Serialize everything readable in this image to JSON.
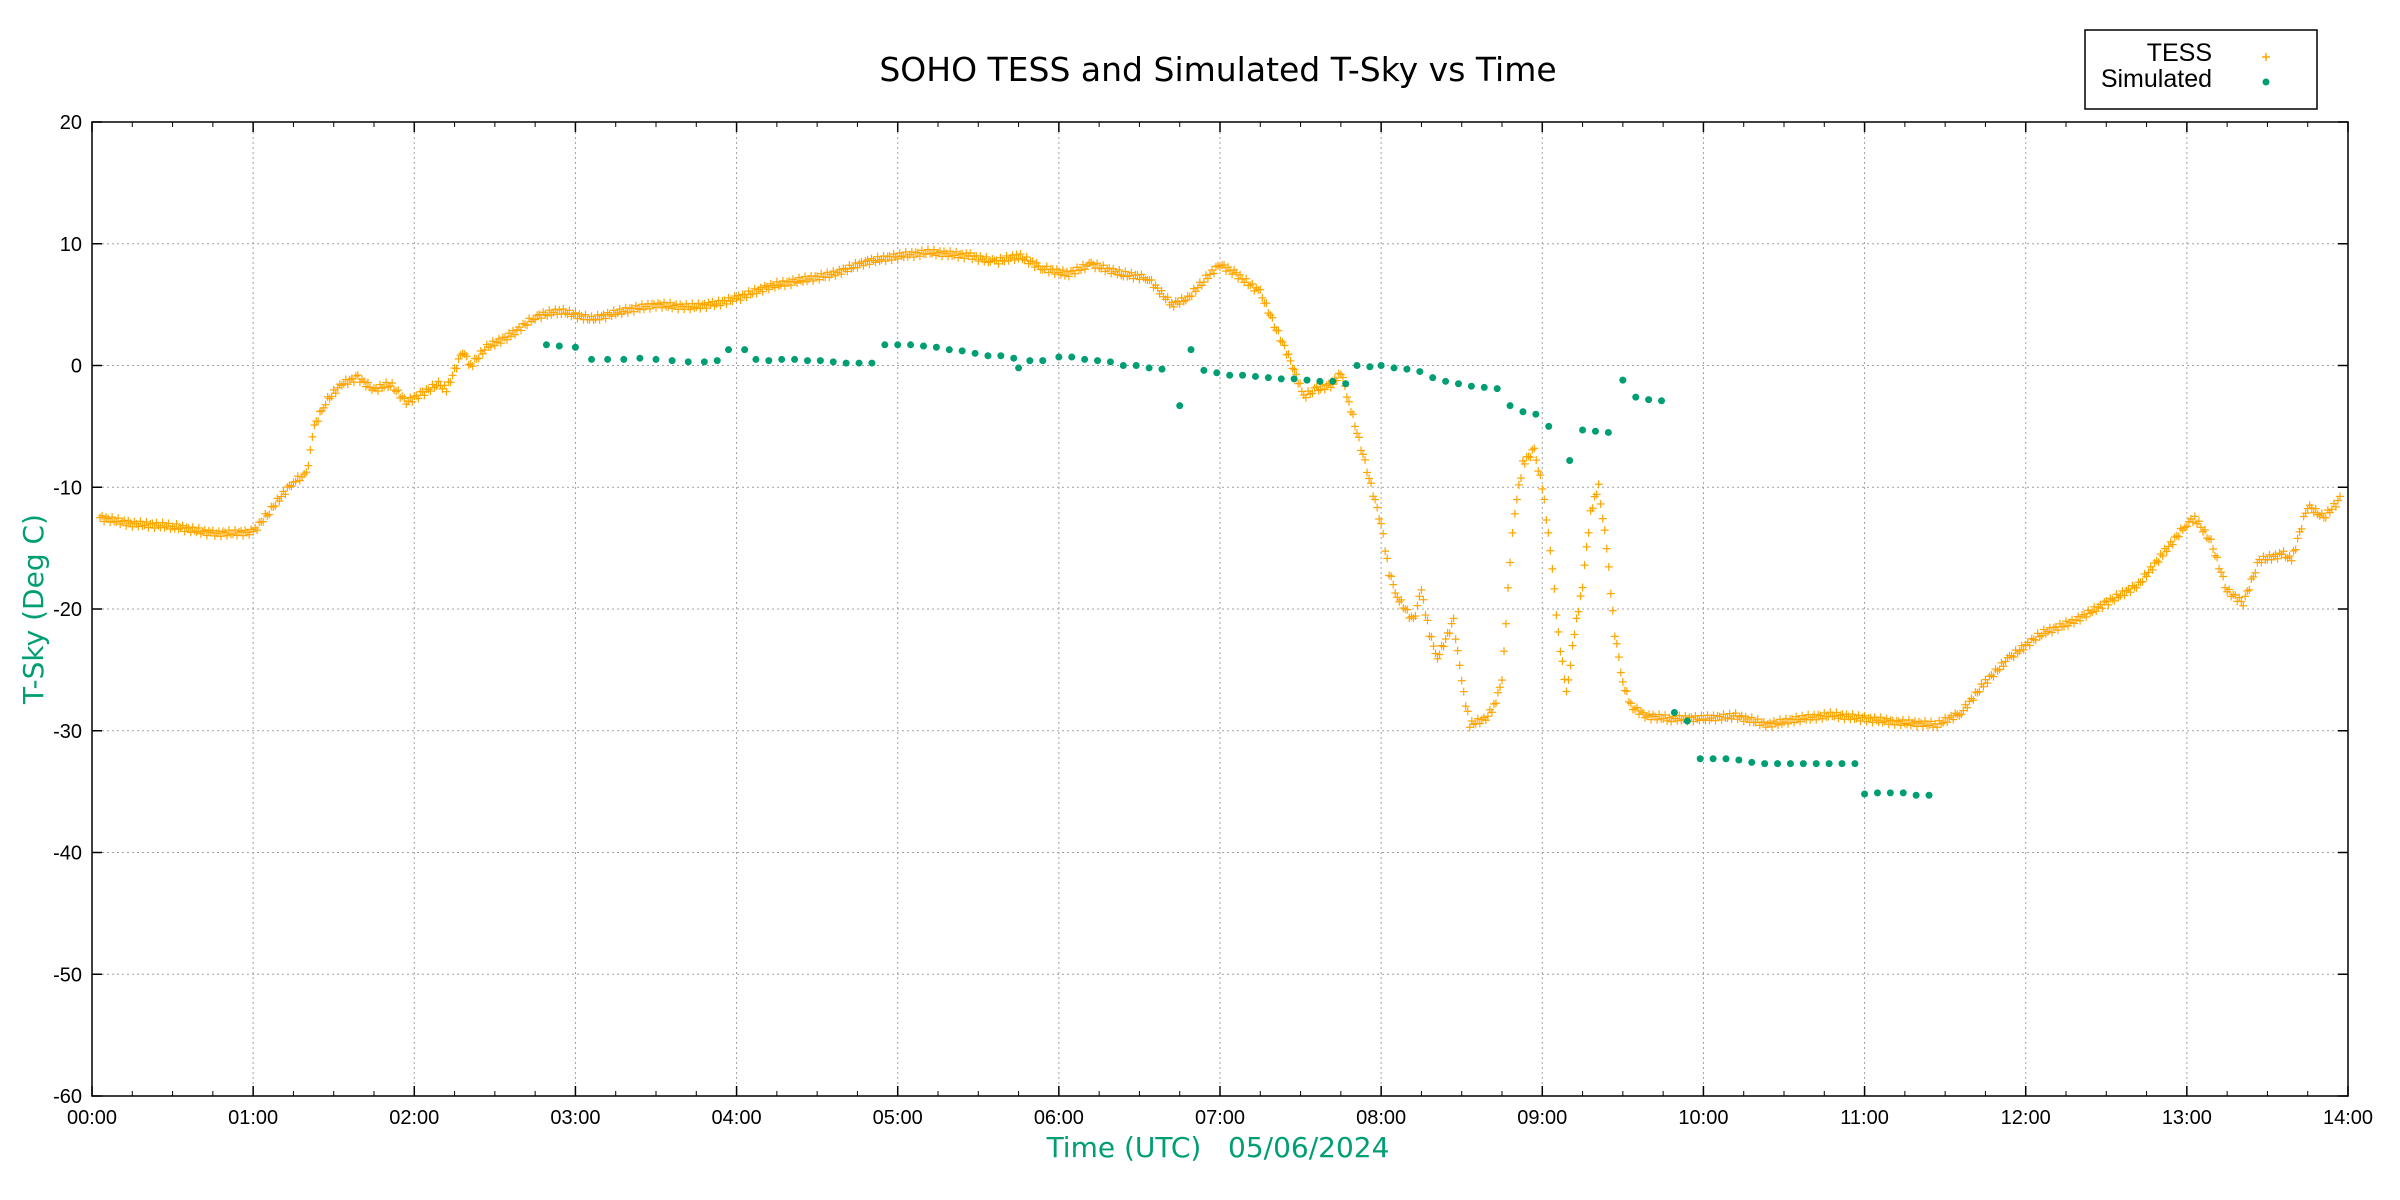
{
  "chart_data": {
    "type": "scatter",
    "title": "SOHO TESS and Simulated T-Sky vs Time",
    "xlabel": "Time (UTC)",
    "xlabel_date": "05/06/2024",
    "ylabel": "T-Sky (Deg C)",
    "xlim": [
      0,
      14
    ],
    "ylim": [
      -60,
      20
    ],
    "grid": true,
    "legend_position": "top-right",
    "x_ticks": [
      {
        "value": 0,
        "label": "00:00"
      },
      {
        "value": 1,
        "label": "01:00"
      },
      {
        "value": 2,
        "label": "02:00"
      },
      {
        "value": 3,
        "label": "03:00"
      },
      {
        "value": 4,
        "label": "04:00"
      },
      {
        "value": 5,
        "label": "05:00"
      },
      {
        "value": 6,
        "label": "06:00"
      },
      {
        "value": 7,
        "label": "07:00"
      },
      {
        "value": 8,
        "label": "08:00"
      },
      {
        "value": 9,
        "label": "09:00"
      },
      {
        "value": 10,
        "label": "10:00"
      },
      {
        "value": 11,
        "label": "11:00"
      },
      {
        "value": 12,
        "label": "12:00"
      },
      {
        "value": 13,
        "label": "13:00"
      },
      {
        "value": 14,
        "label": "14:00"
      }
    ],
    "y_ticks": [
      {
        "value": 20,
        "label": "20"
      },
      {
        "value": 10,
        "label": "10"
      },
      {
        "value": 0,
        "label": "0"
      },
      {
        "value": -10,
        "label": "-10"
      },
      {
        "value": -20,
        "label": "-20"
      },
      {
        "value": -30,
        "label": "-30"
      },
      {
        "value": -40,
        "label": "-40"
      },
      {
        "value": -50,
        "label": "-50"
      },
      {
        "value": -60,
        "label": "-60"
      }
    ],
    "series": [
      {
        "name": "TESS",
        "marker": "plus",
        "color": "#ffa500",
        "points": [
          [
            0.05,
            -12.5
          ],
          [
            0.25,
            -13
          ],
          [
            0.5,
            -13.2
          ],
          [
            0.75,
            -13.8
          ],
          [
            1.0,
            -13.7
          ],
          [
            1.1,
            -12
          ],
          [
            1.25,
            -9.5
          ],
          [
            1.33,
            -9
          ],
          [
            1.38,
            -5
          ],
          [
            1.45,
            -3
          ],
          [
            1.55,
            -1.5
          ],
          [
            1.65,
            -1
          ],
          [
            1.75,
            -2
          ],
          [
            1.85,
            -1.5
          ],
          [
            1.95,
            -3
          ],
          [
            2.05,
            -2.3
          ],
          [
            2.15,
            -1.5
          ],
          [
            2.2,
            -2
          ],
          [
            2.3,
            1.2
          ],
          [
            2.35,
            0
          ],
          [
            2.45,
            1.5
          ],
          [
            2.6,
            2.5
          ],
          [
            2.75,
            4
          ],
          [
            2.9,
            4.5
          ],
          [
            3.1,
            3.8
          ],
          [
            3.3,
            4.5
          ],
          [
            3.5,
            5
          ],
          [
            3.7,
            4.8
          ],
          [
            3.85,
            5
          ],
          [
            4.0,
            5.5
          ],
          [
            4.2,
            6.5
          ],
          [
            4.4,
            7
          ],
          [
            4.6,
            7.5
          ],
          [
            4.8,
            8.5
          ],
          [
            5.0,
            9
          ],
          [
            5.2,
            9.3
          ],
          [
            5.45,
            9
          ],
          [
            5.6,
            8.5
          ],
          [
            5.75,
            9
          ],
          [
            5.9,
            8
          ],
          [
            6.05,
            7.5
          ],
          [
            6.2,
            8.3
          ],
          [
            6.4,
            7.5
          ],
          [
            6.55,
            7.2
          ],
          [
            6.7,
            5
          ],
          [
            6.8,
            5.5
          ],
          [
            6.9,
            7
          ],
          [
            7.0,
            8.3
          ],
          [
            7.1,
            7.5
          ],
          [
            7.25,
            6
          ],
          [
            7.35,
            3
          ],
          [
            7.45,
            0
          ],
          [
            7.52,
            -2.5
          ],
          [
            7.6,
            -2
          ],
          [
            7.7,
            -1.5
          ],
          [
            7.75,
            -0.5
          ],
          [
            7.8,
            -3
          ],
          [
            7.9,
            -8
          ],
          [
            8.0,
            -13
          ],
          [
            8.05,
            -17
          ],
          [
            8.1,
            -19
          ],
          [
            8.2,
            -21
          ],
          [
            8.25,
            -18.5
          ],
          [
            8.3,
            -22
          ],
          [
            8.35,
            -24
          ],
          [
            8.45,
            -21
          ],
          [
            8.5,
            -26
          ],
          [
            8.55,
            -29.5
          ],
          [
            8.65,
            -29
          ],
          [
            8.7,
            -28
          ],
          [
            8.75,
            -26
          ],
          [
            8.8,
            -16
          ],
          [
            8.83,
            -12
          ],
          [
            8.88,
            -8
          ],
          [
            8.95,
            -7
          ],
          [
            9.0,
            -10
          ],
          [
            9.05,
            -15
          ],
          [
            9.1,
            -22
          ],
          [
            9.15,
            -27
          ],
          [
            9.2,
            -22
          ],
          [
            9.25,
            -18
          ],
          [
            9.3,
            -12
          ],
          [
            9.35,
            -10
          ],
          [
            9.4,
            -15
          ],
          [
            9.45,
            -22
          ],
          [
            9.5,
            -26
          ],
          [
            9.55,
            -28
          ],
          [
            9.65,
            -28.8
          ],
          [
            9.8,
            -29
          ],
          [
            10.0,
            -29
          ],
          [
            10.2,
            -28.8
          ],
          [
            10.4,
            -29.5
          ],
          [
            10.6,
            -29
          ],
          [
            10.8,
            -28.7
          ],
          [
            11.0,
            -29
          ],
          [
            11.2,
            -29.3
          ],
          [
            11.45,
            -29.5
          ],
          [
            11.6,
            -28.5
          ],
          [
            11.75,
            -26
          ],
          [
            11.9,
            -24
          ],
          [
            12.1,
            -22
          ],
          [
            12.3,
            -21
          ],
          [
            12.5,
            -19.5
          ],
          [
            12.7,
            -18
          ],
          [
            12.85,
            -15.5
          ],
          [
            13.0,
            -13
          ],
          [
            13.05,
            -12.5
          ],
          [
            13.15,
            -14.5
          ],
          [
            13.25,
            -18.5
          ],
          [
            13.35,
            -19.5
          ],
          [
            13.45,
            -16
          ],
          [
            13.6,
            -15.5
          ],
          [
            13.65,
            -16
          ],
          [
            13.75,
            -11.5
          ],
          [
            13.85,
            -12.5
          ],
          [
            13.95,
            -11
          ]
        ]
      },
      {
        "name": "Simulated",
        "marker": "dot",
        "color": "#009e73",
        "points": [
          [
            2.82,
            1.7
          ],
          [
            2.9,
            1.6
          ],
          [
            3.0,
            1.5
          ],
          [
            3.1,
            0.5
          ],
          [
            3.2,
            0.5
          ],
          [
            3.3,
            0.5
          ],
          [
            3.4,
            0.6
          ],
          [
            3.5,
            0.5
          ],
          [
            3.6,
            0.4
          ],
          [
            3.7,
            0.3
          ],
          [
            3.8,
            0.3
          ],
          [
            3.88,
            0.4
          ],
          [
            3.95,
            1.3
          ],
          [
            4.05,
            1.3
          ],
          [
            4.12,
            0.5
          ],
          [
            4.2,
            0.4
          ],
          [
            4.28,
            0.5
          ],
          [
            4.36,
            0.5
          ],
          [
            4.44,
            0.4
          ],
          [
            4.52,
            0.4
          ],
          [
            4.6,
            0.3
          ],
          [
            4.68,
            0.2
          ],
          [
            4.76,
            0.2
          ],
          [
            4.84,
            0.2
          ],
          [
            4.92,
            1.7
          ],
          [
            5.0,
            1.7
          ],
          [
            5.08,
            1.7
          ],
          [
            5.16,
            1.6
          ],
          [
            5.24,
            1.5
          ],
          [
            5.32,
            1.3
          ],
          [
            5.4,
            1.2
          ],
          [
            5.48,
            1.0
          ],
          [
            5.56,
            0.8
          ],
          [
            5.64,
            0.8
          ],
          [
            5.72,
            0.6
          ],
          [
            5.75,
            -0.2
          ],
          [
            5.82,
            0.4
          ],
          [
            5.9,
            0.4
          ],
          [
            6.0,
            0.7
          ],
          [
            6.08,
            0.7
          ],
          [
            6.16,
            0.5
          ],
          [
            6.24,
            0.4
          ],
          [
            6.32,
            0.3
          ],
          [
            6.4,
            0.0
          ],
          [
            6.48,
            0.0
          ],
          [
            6.56,
            -0.2
          ],
          [
            6.64,
            -0.3
          ],
          [
            6.75,
            -3.3
          ],
          [
            6.82,
            1.3
          ],
          [
            6.9,
            -0.4
          ],
          [
            6.98,
            -0.6
          ],
          [
            7.06,
            -0.8
          ],
          [
            7.14,
            -0.8
          ],
          [
            7.22,
            -0.9
          ],
          [
            7.3,
            -1.0
          ],
          [
            7.38,
            -1.1
          ],
          [
            7.46,
            -1.1
          ],
          [
            7.54,
            -1.2
          ],
          [
            7.62,
            -1.3
          ],
          [
            7.7,
            -1.3
          ],
          [
            7.78,
            -1.5
          ],
          [
            7.85,
            0.0
          ],
          [
            7.93,
            -0.1
          ],
          [
            8.0,
            0.0
          ],
          [
            8.08,
            -0.2
          ],
          [
            8.16,
            -0.3
          ],
          [
            8.24,
            -0.5
          ],
          [
            8.32,
            -1.0
          ],
          [
            8.4,
            -1.3
          ],
          [
            8.48,
            -1.5
          ],
          [
            8.56,
            -1.7
          ],
          [
            8.64,
            -1.8
          ],
          [
            8.72,
            -1.9
          ],
          [
            8.8,
            -3.3
          ],
          [
            8.88,
            -3.8
          ],
          [
            8.96,
            -4.0
          ],
          [
            9.04,
            -5.0
          ],
          [
            9.17,
            -7.8
          ],
          [
            9.25,
            -5.3
          ],
          [
            9.33,
            -5.4
          ],
          [
            9.41,
            -5.5
          ],
          [
            9.5,
            -1.2
          ],
          [
            9.58,
            -2.6
          ],
          [
            9.66,
            -2.8
          ],
          [
            9.74,
            -2.9
          ],
          [
            9.82,
            -28.5
          ],
          [
            9.9,
            -29.2
          ],
          [
            9.98,
            -32.3
          ],
          [
            10.06,
            -32.3
          ],
          [
            10.14,
            -32.3
          ],
          [
            10.22,
            -32.4
          ],
          [
            10.3,
            -32.6
          ],
          [
            10.38,
            -32.7
          ],
          [
            10.46,
            -32.7
          ],
          [
            10.54,
            -32.7
          ],
          [
            10.62,
            -32.7
          ],
          [
            10.7,
            -32.7
          ],
          [
            10.78,
            -32.7
          ],
          [
            10.86,
            -32.7
          ],
          [
            10.94,
            -32.7
          ],
          [
            11.0,
            -35.2
          ],
          [
            11.08,
            -35.1
          ],
          [
            11.16,
            -35.1
          ],
          [
            11.24,
            -35.1
          ],
          [
            11.32,
            -35.3
          ],
          [
            11.4,
            -35.3
          ]
        ]
      }
    ]
  }
}
